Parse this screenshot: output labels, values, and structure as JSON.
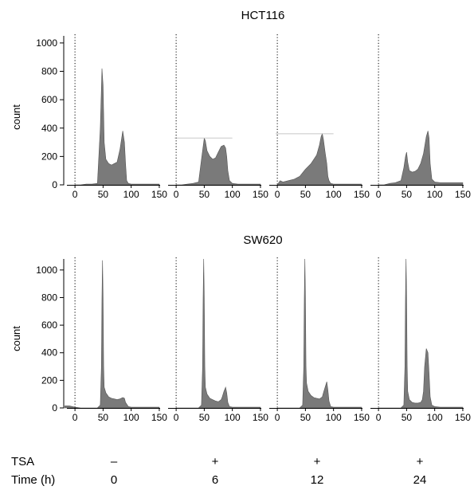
{
  "chart_data": [
    {
      "type": "area",
      "title": "HCT116",
      "ylabel": "count",
      "ylim": [
        0,
        1050
      ],
      "y_ticks": [
        0,
        200,
        400,
        600,
        800,
        1000
      ],
      "xlim": [
        -20,
        160
      ],
      "x_ticks": [
        0,
        50,
        100,
        150
      ],
      "color": "#7a7a7a",
      "subplots": [
        {
          "x": [
            0,
            10,
            20,
            30,
            40,
            45,
            48,
            50,
            52,
            55,
            60,
            65,
            70,
            75,
            80,
            85,
            88,
            90,
            92,
            95,
            100,
            110,
            120,
            130,
            140,
            150
          ],
          "y": [
            0,
            0,
            5,
            5,
            10,
            400,
            820,
            700,
            300,
            180,
            150,
            140,
            150,
            160,
            250,
            380,
            300,
            150,
            30,
            10,
            5,
            5,
            5,
            5,
            5,
            5
          ]
        },
        {
          "x": [
            0,
            10,
            20,
            30,
            40,
            45,
            48,
            50,
            52,
            55,
            60,
            65,
            70,
            75,
            80,
            85,
            88,
            90,
            92,
            95,
            100,
            110,
            120,
            130,
            140,
            150
          ],
          "y": [
            0,
            0,
            5,
            10,
            20,
            180,
            270,
            330,
            310,
            240,
            200,
            180,
            190,
            230,
            270,
            280,
            260,
            200,
            100,
            30,
            10,
            5,
            5,
            5,
            5,
            5
          ],
          "reference_line": 330
        },
        {
          "x": [
            0,
            5,
            10,
            20,
            30,
            40,
            50,
            60,
            65,
            70,
            75,
            78,
            80,
            82,
            85,
            88,
            90,
            92,
            95,
            100,
            110,
            120,
            130,
            140,
            150
          ],
          "y": [
            0,
            30,
            20,
            30,
            40,
            60,
            110,
            150,
            180,
            210,
            280,
            340,
            360,
            320,
            230,
            150,
            60,
            30,
            10,
            5,
            5,
            5,
            5,
            5,
            5
          ],
          "reference_line": 360
        },
        {
          "x": [
            0,
            10,
            20,
            30,
            40,
            45,
            48,
            50,
            52,
            55,
            60,
            65,
            70,
            75,
            80,
            85,
            88,
            90,
            92,
            95,
            100,
            110,
            120,
            130,
            140,
            150
          ],
          "y": [
            0,
            0,
            10,
            15,
            30,
            120,
            200,
            230,
            160,
            100,
            90,
            95,
            110,
            150,
            220,
            340,
            380,
            330,
            150,
            40,
            20,
            15,
            15,
            15,
            15,
            15
          ]
        }
      ]
    },
    {
      "type": "area",
      "title": "SW620",
      "ylabel": "count",
      "ylim": [
        0,
        1080
      ],
      "y_ticks": [
        0,
        200,
        400,
        600,
        800,
        1000
      ],
      "xlim": [
        -20,
        160
      ],
      "x_ticks": [
        0,
        50,
        100,
        150
      ],
      "color": "#7a7a7a",
      "subplots": [
        {
          "x": [
            -18,
            -10,
            0,
            10,
            20,
            30,
            40,
            45,
            47,
            48,
            49,
            50,
            51,
            52,
            55,
            60,
            65,
            70,
            75,
            80,
            85,
            88,
            90,
            95,
            100,
            110,
            120,
            130,
            140,
            150
          ],
          "y": [
            15,
            15,
            5,
            0,
            0,
            0,
            0,
            20,
            300,
            800,
            1070,
            800,
            300,
            150,
            110,
            80,
            70,
            65,
            60,
            65,
            75,
            70,
            40,
            10,
            5,
            5,
            5,
            5,
            5,
            5
          ]
        },
        {
          "x": [
            0,
            10,
            20,
            30,
            40,
            45,
            47,
            48,
            49,
            50,
            51,
            52,
            55,
            60,
            65,
            70,
            75,
            80,
            82,
            85,
            88,
            90,
            92,
            95,
            100,
            110,
            120,
            130,
            140,
            150
          ],
          "y": [
            0,
            0,
            0,
            0,
            0,
            20,
            300,
            800,
            1080,
            800,
            300,
            150,
            100,
            70,
            60,
            50,
            45,
            60,
            80,
            120,
            150,
            110,
            40,
            10,
            5,
            5,
            5,
            5,
            5,
            5
          ]
        },
        {
          "x": [
            0,
            10,
            20,
            30,
            40,
            45,
            47,
            48,
            49,
            50,
            51,
            52,
            55,
            60,
            65,
            70,
            75,
            80,
            82,
            85,
            88,
            90,
            92,
            95,
            100,
            110,
            120,
            130,
            140,
            150
          ],
          "y": [
            0,
            0,
            0,
            0,
            0,
            20,
            300,
            800,
            1080,
            800,
            300,
            180,
            120,
            90,
            75,
            70,
            65,
            80,
            110,
            150,
            190,
            130,
            50,
            10,
            5,
            5,
            5,
            5,
            5,
            5
          ]
        },
        {
          "x": [
            0,
            10,
            20,
            30,
            40,
            45,
            47,
            48,
            49,
            50,
            51,
            52,
            55,
            60,
            65,
            70,
            75,
            78,
            80,
            82,
            85,
            88,
            90,
            92,
            95,
            100,
            110,
            120,
            130,
            140,
            150
          ],
          "y": [
            0,
            0,
            0,
            0,
            0,
            20,
            300,
            800,
            1080,
            800,
            300,
            120,
            60,
            40,
            35,
            35,
            40,
            60,
            120,
            300,
            430,
            400,
            250,
            80,
            20,
            10,
            5,
            5,
            5,
            5,
            5
          ]
        }
      ]
    }
  ],
  "conditions": {
    "labels": [
      "TSA",
      "Time (h)"
    ],
    "tsa": [
      "–",
      "+",
      "+",
      "+"
    ],
    "time": [
      "0",
      "6",
      "12",
      "24"
    ]
  }
}
